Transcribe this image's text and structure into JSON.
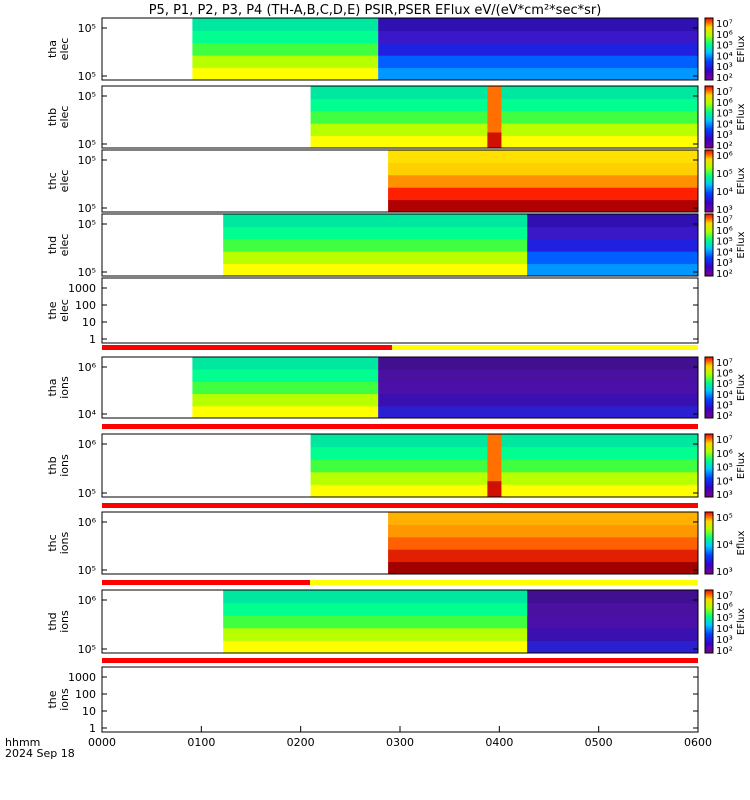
{
  "chart_data": {
    "type": "heatmap",
    "title": "P5, P1, P2, P3, P4 (TH-A,B,C,D,E) PSIR,PSER EFlux eV/(eV*cm²*sec*sr)",
    "x_ticks": [
      "0000",
      "0100",
      "0200",
      "0300",
      "0400",
      "0500",
      "0600"
    ],
    "x_range_hours": [
      0,
      6
    ],
    "x_label_line1": "hhmm",
    "x_label_line2": "2024 Sep 18",
    "panels": [
      {
        "ylabel": [
          "tha",
          "elec"
        ],
        "yticks": [
          "10⁵",
          "10⁵"
        ],
        "start": 0.91,
        "transition": 2.78,
        "before": "green",
        "after": "blue",
        "colorbar": "EFlux",
        "cb_ticks": [
          "10⁷",
          "10⁶",
          "10⁵",
          "10⁴",
          "10³",
          "10²"
        ]
      },
      {
        "ylabel": [
          "thb",
          "elec"
        ],
        "yticks": [
          "10⁵",
          "10⁵"
        ],
        "start": 2.1,
        "spike": 3.88,
        "before": "green",
        "after": "green",
        "colorbar": "EFlux",
        "cb_ticks": [
          "10⁷",
          "10⁶",
          "10⁵",
          "10⁴",
          "10³",
          "10²"
        ]
      },
      {
        "ylabel": [
          "thc",
          "elec"
        ],
        "yticks": [
          "10⁵",
          "10⁵"
        ],
        "start": 2.88,
        "before": "yellow",
        "after": "yellow",
        "colorbar": "EFlux",
        "cb_ticks": [
          "10⁶",
          "10⁵",
          "10⁴",
          "10³"
        ]
      },
      {
        "ylabel": [
          "thd",
          "elec"
        ],
        "yticks": [
          "10⁵",
          "10⁵"
        ],
        "start": 1.22,
        "transition": 4.28,
        "before": "green",
        "after": "blue",
        "colorbar": "EFlux",
        "cb_ticks": [
          "10⁷",
          "10⁶",
          "10⁵",
          "10⁴",
          "10³",
          "10²"
        ]
      },
      {
        "ylabel": [
          "the",
          "elec"
        ],
        "yticks": [
          "1000",
          "100",
          "10",
          "1"
        ],
        "empty": true
      },
      {
        "ylabel": [
          "tha",
          "ions"
        ],
        "yticks": [
          "10⁶",
          "10⁴"
        ],
        "start": 0.91,
        "transition": 2.78,
        "before": "green",
        "after": "purple",
        "colorbar": "EFlux",
        "cb_ticks": [
          "10⁷",
          "10⁶",
          "10⁵",
          "10⁴",
          "10³",
          "10²"
        ]
      },
      {
        "ylabel": [
          "thb",
          "ions"
        ],
        "yticks": [
          "10⁶",
          "10⁵"
        ],
        "start": 2.1,
        "spike": 3.88,
        "before": "green",
        "after": "green",
        "colorbar": "EFlux",
        "cb_ticks": [
          "10⁷",
          "10⁶",
          "10⁵",
          "10⁴",
          "10³"
        ]
      },
      {
        "ylabel": [
          "thc",
          "ions"
        ],
        "yticks": [
          "10⁶",
          "10⁵"
        ],
        "start": 2.88,
        "before": "orange",
        "after": "orange",
        "colorbar": "Eflux",
        "cb_ticks": [
          "10⁵",
          "10⁴",
          "10³"
        ]
      },
      {
        "ylabel": [
          "thd",
          "ions"
        ],
        "yticks": [
          "10⁶",
          "10⁵"
        ],
        "start": 1.22,
        "transition": 4.28,
        "before": "green",
        "after": "purple",
        "colorbar": "EFlux",
        "cb_ticks": [
          "10⁷",
          "10⁶",
          "10⁵",
          "10⁴",
          "10³",
          "10²"
        ]
      },
      {
        "ylabel": [
          "the",
          "ions"
        ],
        "yticks": [
          "1000",
          "100",
          "10",
          "1"
        ],
        "empty": true
      }
    ]
  }
}
